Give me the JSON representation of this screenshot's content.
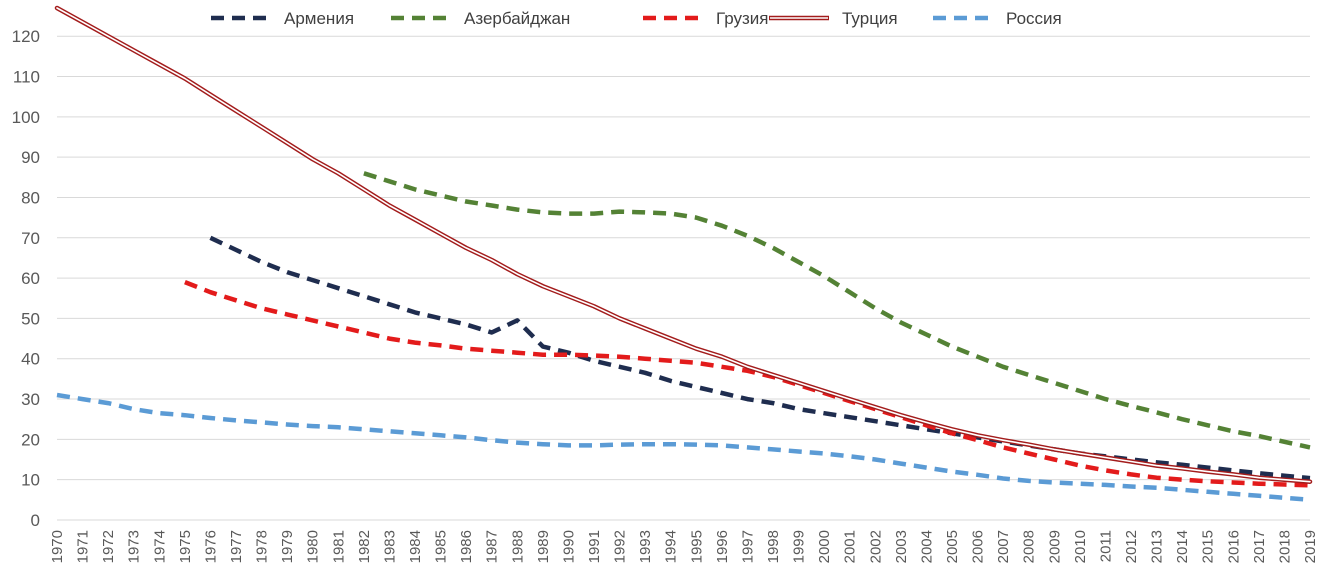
{
  "chart_data": {
    "type": "line",
    "title": "",
    "xlabel": "",
    "ylabel": "",
    "ylim": [
      0,
      125
    ],
    "yticks": [
      0,
      10,
      20,
      30,
      40,
      50,
      60,
      70,
      80,
      90,
      100,
      110,
      120
    ],
    "grid": true,
    "legend_position": "top",
    "x": [
      1970,
      1971,
      1972,
      1973,
      1974,
      1975,
      1976,
      1977,
      1978,
      1979,
      1980,
      1981,
      1982,
      1983,
      1984,
      1985,
      1986,
      1987,
      1988,
      1989,
      1990,
      1991,
      1992,
      1993,
      1994,
      1995,
      1996,
      1997,
      1998,
      1999,
      2000,
      2001,
      2002,
      2003,
      2004,
      2005,
      2006,
      2007,
      2008,
      2009,
      2010,
      2011,
      2012,
      2013,
      2014,
      2015,
      2016,
      2017,
      2018,
      2019
    ],
    "series": [
      {
        "name": "Армения",
        "color": "#1f2d4f",
        "style": "dashed",
        "values": [
          null,
          null,
          null,
          null,
          null,
          null,
          70,
          67,
          64,
          61.5,
          59.5,
          57.5,
          55.5,
          53.5,
          51.5,
          50,
          48.5,
          46.5,
          49.5,
          43,
          41.5,
          39.5,
          38,
          36.5,
          34.5,
          33,
          31.5,
          30,
          29,
          27.5,
          26.5,
          25.5,
          24.5,
          23.5,
          22.5,
          21.5,
          20.5,
          19.5,
          18.5,
          17.5,
          16.5,
          15.8,
          15,
          14.3,
          13.7,
          13,
          12.3,
          11.6,
          11,
          10.4
        ]
      },
      {
        "name": "Азербайджан",
        "color": "#548235",
        "style": "dashed",
        "values": [
          null,
          null,
          null,
          null,
          null,
          null,
          null,
          null,
          null,
          null,
          null,
          null,
          86,
          84,
          82,
          80.5,
          79,
          78,
          77,
          76.3,
          76,
          76,
          76.5,
          76.3,
          76,
          75,
          73,
          70.5,
          67.5,
          64,
          60.5,
          56.5,
          52.5,
          49,
          46,
          43,
          40.5,
          38,
          36,
          34,
          32,
          30,
          28.3,
          26.7,
          25,
          23.5,
          22,
          20.8,
          19.4,
          18
        ]
      },
      {
        "name": "Грузия",
        "color": "#e31b1b",
        "style": "dashed",
        "values": [
          null,
          null,
          null,
          null,
          null,
          59,
          56.5,
          54.5,
          52.5,
          51,
          49.5,
          48,
          46.5,
          45,
          44,
          43.3,
          42.5,
          42,
          41.5,
          41,
          41,
          40.8,
          40.5,
          40,
          39.5,
          39,
          38,
          37,
          35.5,
          33.5,
          31.5,
          29.5,
          27.5,
          25.5,
          23.5,
          21.5,
          19.8,
          18,
          16.5,
          15,
          13.5,
          12.3,
          11.3,
          10.5,
          10,
          9.6,
          9.3,
          9,
          8.8,
          8.6
        ]
      },
      {
        "name": "Турция",
        "color": "#a31c1c",
        "style": "double",
        "values": [
          127,
          123.5,
          120,
          116.5,
          113,
          109.5,
          105.5,
          101.5,
          97.5,
          93.5,
          89.5,
          86,
          82,
          78,
          74.5,
          71,
          67.5,
          64.5,
          61,
          58,
          55.5,
          53,
          50,
          47.5,
          45,
          42.5,
          40.5,
          38,
          36,
          34,
          32,
          30,
          28,
          26,
          24.2,
          22.5,
          21,
          19.8,
          18.7,
          17.5,
          16.5,
          15.5,
          14.5,
          13.5,
          12.8,
          12,
          11.3,
          10.5,
          10,
          9.5
        ]
      },
      {
        "name": "Россия",
        "color": "#5b9bd5",
        "style": "dashed",
        "values": [
          31,
          30,
          29,
          27.5,
          26.5,
          26,
          25.3,
          24.7,
          24.2,
          23.7,
          23.3,
          23,
          22.5,
          22,
          21.5,
          21,
          20.5,
          19.8,
          19.2,
          18.8,
          18.5,
          18.5,
          18.7,
          18.8,
          18.8,
          18.7,
          18.5,
          18,
          17.5,
          17,
          16.5,
          15.8,
          15,
          14,
          13,
          12,
          11.2,
          10.3,
          9.7,
          9.3,
          9,
          8.7,
          8.3,
          8,
          7.5,
          7,
          6.5,
          6,
          5.5,
          5
        ]
      }
    ]
  }
}
